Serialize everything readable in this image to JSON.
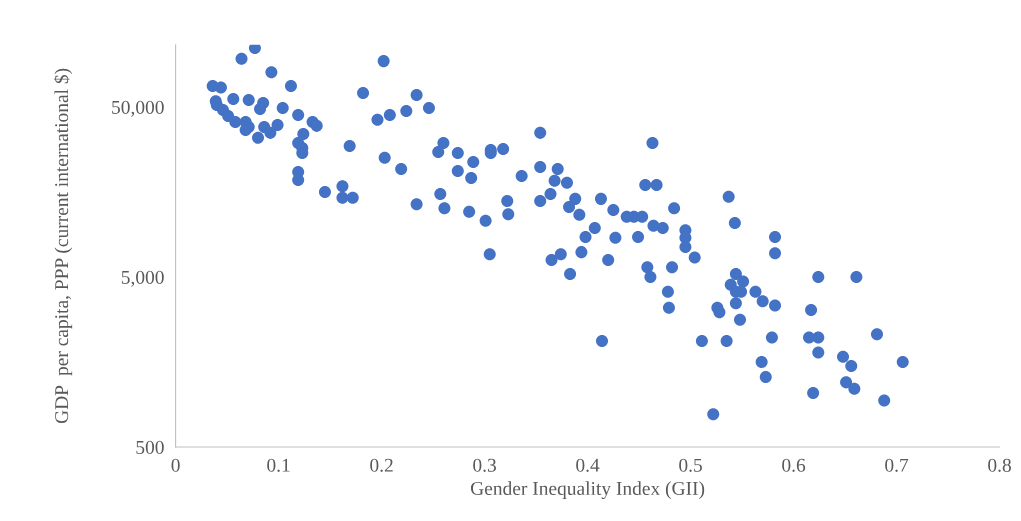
{
  "chart_data": {
    "type": "scatter",
    "xlabel": "Gender Inequality Index (GII)",
    "ylabel": "GDP  per capita, PPP (current international $)",
    "xlim": [
      0,
      0.8
    ],
    "xticks": [
      0,
      0.1,
      0.2,
      0.3,
      0.4,
      0.5,
      0.6,
      0.7,
      0.8
    ],
    "ylim": [
      500,
      116000
    ],
    "yticks": [
      {
        "value": 500,
        "label": "500"
      },
      {
        "value": 5000,
        "label": "5,000"
      },
      {
        "value": 50000,
        "label": "50,000"
      }
    ],
    "log": "y",
    "grid": false,
    "marker": "circle",
    "series": [
      {
        "color": "#4472c4",
        "x": [
          0.077,
          0.064,
          0.093,
          0.112,
          0.036,
          0.044,
          0.056,
          0.071,
          0.085,
          0.039,
          0.04,
          0.082,
          0.104,
          0.046,
          0.051,
          0.058,
          0.068,
          0.071,
          0.068,
          0.086,
          0.092,
          0.099,
          0.08,
          0.119,
          0.133,
          0.137,
          0.124,
          0.119,
          0.123,
          0.123,
          0.119,
          0.119,
          0.145,
          0.162,
          0.162,
          0.172,
          0.169,
          0.202,
          0.182,
          0.196,
          0.208,
          0.224,
          0.234,
          0.246,
          0.203,
          0.219,
          0.234,
          0.257,
          0.261,
          0.26,
          0.255,
          0.274,
          0.274,
          0.289,
          0.287,
          0.306,
          0.306,
          0.318,
          0.354,
          0.336,
          0.354,
          0.371,
          0.368,
          0.38,
          0.364,
          0.354,
          0.322,
          0.323,
          0.285,
          0.301,
          0.305,
          0.388,
          0.382,
          0.392,
          0.413,
          0.425,
          0.438,
          0.445,
          0.453,
          0.463,
          0.456,
          0.467,
          0.484,
          0.464,
          0.473,
          0.495,
          0.495,
          0.495,
          0.504,
          0.482,
          0.537,
          0.543,
          0.407,
          0.398,
          0.427,
          0.449,
          0.394,
          0.365,
          0.374,
          0.42,
          0.383,
          0.458,
          0.461,
          0.478,
          0.479,
          0.544,
          0.539,
          0.544,
          0.544,
          0.526,
          0.528,
          0.548,
          0.414,
          0.511,
          0.535,
          0.582,
          0.582,
          0.551,
          0.549,
          0.563,
          0.57,
          0.582,
          0.579,
          0.522,
          0.569,
          0.573,
          0.624,
          0.661,
          0.617,
          0.615,
          0.624,
          0.681,
          0.624,
          0.648,
          0.656,
          0.651,
          0.659,
          0.619,
          0.688,
          0.706
        ],
        "values": [
          111000,
          96000,
          80000,
          66500,
          66500,
          65000,
          55700,
          55000,
          52800,
          54000,
          51400,
          48600,
          49300,
          48000,
          44300,
          40800,
          40800,
          38100,
          36600,
          38100,
          35200,
          39200,
          32900,
          44900,
          40800,
          38700,
          34700,
          30700,
          28700,
          26800,
          20700,
          18600,
          15800,
          17100,
          14600,
          14600,
          29500,
          93000,
          60400,
          42000,
          44900,
          47300,
          58800,
          49300,
          25100,
          21600,
          13400,
          15400,
          12700,
          30700,
          27200,
          26800,
          21000,
          23700,
          19100,
          27900,
          26800,
          28300,
          35200,
          19600,
          22200,
          21600,
          18400,
          17900,
          15400,
          14000,
          14000,
          11700,
          12100,
          10700,
          6800,
          14400,
          12900,
          11600,
          14400,
          12400,
          11300,
          11300,
          11300,
          30700,
          17400,
          17400,
          12700,
          10000,
          9700,
          9400,
          8500,
          7500,
          6500,
          5700,
          14800,
          10400,
          9700,
          8600,
          8500,
          8600,
          7000,
          6300,
          6800,
          6300,
          5200,
          5700,
          5000,
          4100,
          3300,
          5200,
          4500,
          4100,
          3500,
          3300,
          3100,
          2800,
          2100,
          2100,
          2100,
          8600,
          6900,
          4700,
          4100,
          4100,
          3600,
          3400,
          2200,
          780,
          1580,
          1290,
          5000,
          5000,
          3200,
          2200,
          2200,
          2300,
          1800,
          1700,
          1500,
          1200,
          1100,
          1040,
          940,
          1580
        ]
      }
    ]
  }
}
